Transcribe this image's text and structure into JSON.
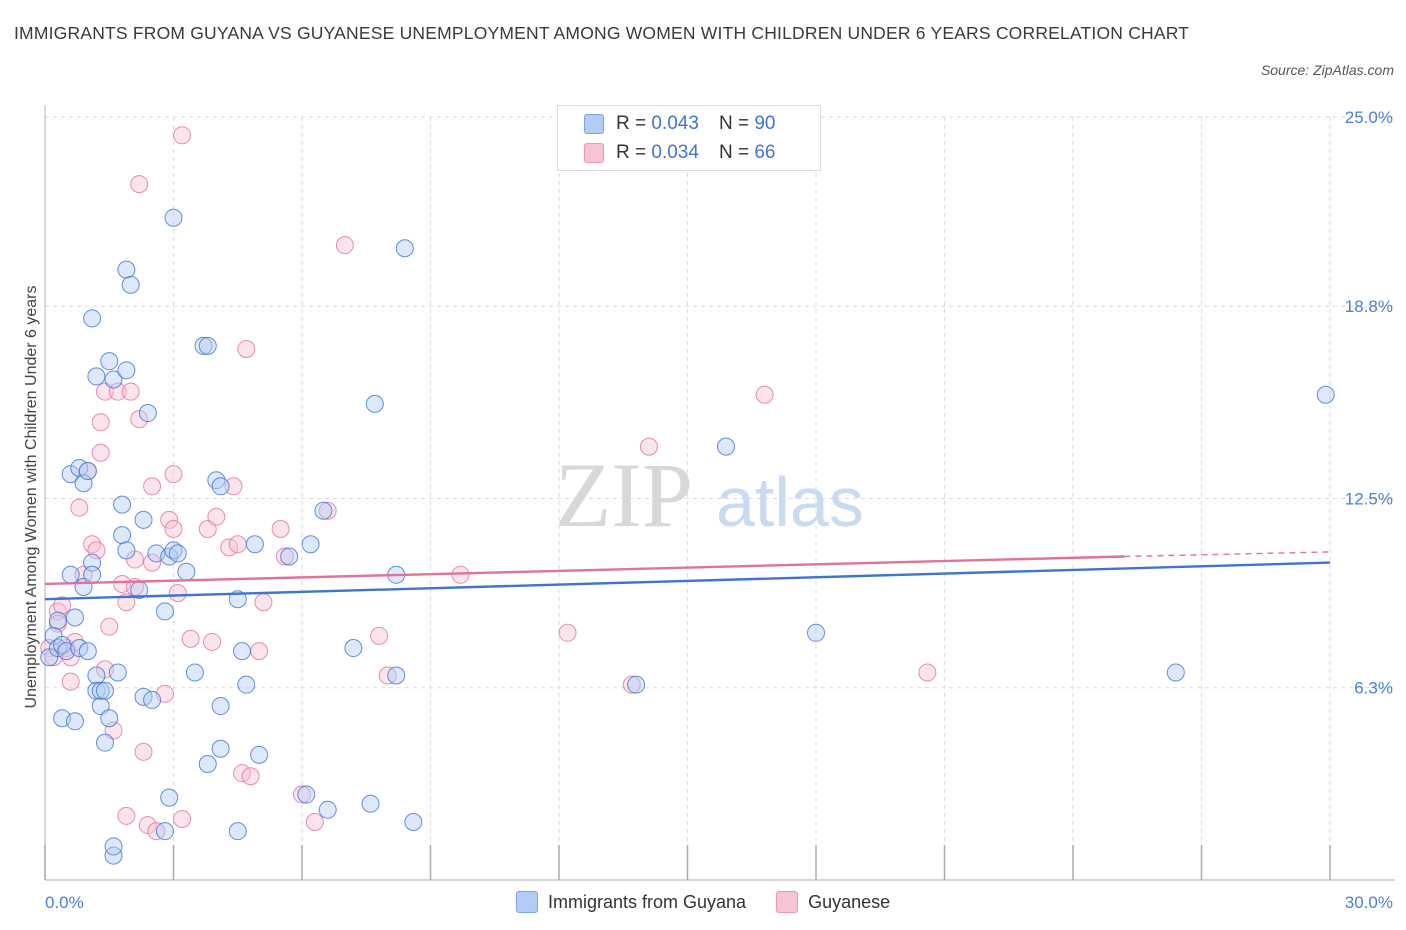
{
  "title": "IMMIGRANTS FROM GUYANA VS GUYANESE UNEMPLOYMENT AMONG WOMEN WITH CHILDREN UNDER 6 YEARS CORRELATION CHART",
  "source": "Source: ZipAtlas.com",
  "watermark": {
    "zip": "ZIP",
    "atlas": "atlas"
  },
  "colors": {
    "blue": "#3f74d0",
    "blue_fill": "#b3ccf5",
    "pink": "#e0729c",
    "pink_fill": "#f8c3d5",
    "grid": "#d9d9d9",
    "tick_text": "#4a7fd4"
  },
  "legend": {
    "rows": [
      {
        "r_label": "R =",
        "r_value": "0.043",
        "n_label": "N =",
        "n_value": "90"
      },
      {
        "r_label": "R =",
        "r_value": "0.034",
        "n_label": "N =",
        "n_value": "66"
      }
    ]
  },
  "bottom_legend": [
    "Immigrants from Guyana",
    "Guyanese"
  ],
  "chart_data": {
    "type": "scatter",
    "ylabel": "Unemployment Among Women with Children Under 6 years",
    "xlim": [
      0,
      30
    ],
    "ylim": [
      0,
      25.0
    ],
    "x_tick_labels": [
      {
        "value": 0,
        "label": "0.0%"
      },
      {
        "value": 30,
        "label": "30.0%"
      }
    ],
    "y_tick_labels": [
      {
        "value": 6.3,
        "label": "6.3%"
      },
      {
        "value": 12.5,
        "label": "12.5%"
      },
      {
        "value": 18.8,
        "label": "18.8%"
      },
      {
        "value": 25.0,
        "label": "25.0%"
      }
    ],
    "grid": true,
    "legend_position": "top-center",
    "series": [
      {
        "name": "Immigrants from Guyana",
        "color": "#3f74d0",
        "trend": {
          "x": [
            0,
            30
          ],
          "y": [
            9.2,
            10.4
          ]
        },
        "points": [
          [
            0.1,
            7.3
          ],
          [
            0.2,
            8.0
          ],
          [
            0.3,
            7.6
          ],
          [
            0.3,
            8.5
          ],
          [
            0.4,
            7.7
          ],
          [
            0.4,
            5.3
          ],
          [
            0.5,
            7.5
          ],
          [
            0.6,
            10.0
          ],
          [
            0.6,
            13.3
          ],
          [
            0.7,
            8.6
          ],
          [
            0.7,
            5.2
          ],
          [
            0.8,
            13.5
          ],
          [
            0.8,
            7.6
          ],
          [
            0.9,
            9.6
          ],
          [
            0.9,
            13.0
          ],
          [
            1.0,
            13.4
          ],
          [
            1.0,
            7.5
          ],
          [
            1.1,
            18.4
          ],
          [
            1.1,
            10.4
          ],
          [
            1.1,
            10.0
          ],
          [
            1.2,
            6.7
          ],
          [
            1.2,
            6.2
          ],
          [
            1.2,
            16.5
          ],
          [
            1.3,
            5.7
          ],
          [
            1.3,
            6.2
          ],
          [
            1.4,
            4.5
          ],
          [
            1.4,
            6.2
          ],
          [
            1.5,
            17.0
          ],
          [
            1.5,
            5.3
          ],
          [
            1.6,
            16.4
          ],
          [
            1.6,
            0.8
          ],
          [
            1.6,
            1.1
          ],
          [
            1.7,
            6.8
          ],
          [
            1.8,
            12.3
          ],
          [
            1.8,
            11.3
          ],
          [
            1.9,
            20.0
          ],
          [
            1.9,
            10.8
          ],
          [
            1.9,
            16.7
          ],
          [
            2.0,
            19.5
          ],
          [
            2.2,
            9.5
          ],
          [
            2.3,
            11.8
          ],
          [
            2.3,
            6.0
          ],
          [
            2.4,
            15.3
          ],
          [
            2.5,
            5.9
          ],
          [
            2.6,
            10.7
          ],
          [
            2.8,
            8.8
          ],
          [
            2.9,
            10.6
          ],
          [
            2.9,
            2.7
          ],
          [
            2.8,
            1.6
          ],
          [
            3.0,
            10.8
          ],
          [
            3.0,
            21.7
          ],
          [
            3.1,
            10.7
          ],
          [
            3.3,
            10.1
          ],
          [
            3.5,
            6.8
          ],
          [
            3.7,
            17.5
          ],
          [
            3.8,
            17.5
          ],
          [
            3.8,
            3.8
          ],
          [
            4.0,
            13.1
          ],
          [
            4.1,
            12.9
          ],
          [
            4.1,
            5.7
          ],
          [
            4.1,
            4.3
          ],
          [
            4.5,
            9.2
          ],
          [
            4.5,
            1.6
          ],
          [
            4.6,
            7.5
          ],
          [
            4.7,
            6.4
          ],
          [
            4.9,
            11.0
          ],
          [
            5.0,
            4.1
          ],
          [
            5.7,
            10.6
          ],
          [
            6.1,
            2.8
          ],
          [
            6.2,
            11.0
          ],
          [
            6.5,
            12.1
          ],
          [
            6.6,
            2.3
          ],
          [
            7.2,
            7.6
          ],
          [
            7.6,
            2.5
          ],
          [
            7.7,
            15.6
          ],
          [
            8.2,
            10.0
          ],
          [
            8.2,
            6.7
          ],
          [
            8.4,
            20.7
          ],
          [
            8.6,
            1.9
          ],
          [
            13.8,
            6.4
          ],
          [
            15.9,
            14.2
          ],
          [
            18.0,
            8.1
          ],
          [
            26.4,
            6.8
          ],
          [
            29.9,
            15.9
          ]
        ]
      },
      {
        "name": "Guyanese",
        "color": "#e0729c",
        "trend": {
          "x": [
            0,
            25.2
          ],
          "y": [
            9.7,
            10.6
          ],
          "dashed_to": {
            "x": 30,
            "y": 10.75
          }
        },
        "points": [
          [
            0.1,
            7.6
          ],
          [
            0.2,
            7.3
          ],
          [
            0.3,
            8.8
          ],
          [
            0.3,
            8.4
          ],
          [
            0.4,
            9.0
          ],
          [
            0.5,
            7.6
          ],
          [
            0.6,
            7.3
          ],
          [
            0.6,
            6.5
          ],
          [
            0.7,
            7.8
          ],
          [
            0.8,
            12.2
          ],
          [
            0.9,
            10.0
          ],
          [
            1.0,
            13.4
          ],
          [
            1.1,
            11.0
          ],
          [
            1.2,
            10.8
          ],
          [
            1.3,
            15.0
          ],
          [
            1.3,
            14.0
          ],
          [
            1.4,
            16.0
          ],
          [
            1.4,
            6.9
          ],
          [
            1.5,
            8.3
          ],
          [
            1.6,
            4.9
          ],
          [
            1.7,
            16.0
          ],
          [
            1.8,
            9.7
          ],
          [
            1.9,
            2.1
          ],
          [
            1.9,
            9.1
          ],
          [
            2.0,
            16.0
          ],
          [
            2.1,
            10.5
          ],
          [
            2.1,
            9.6
          ],
          [
            2.2,
            15.1
          ],
          [
            2.2,
            22.8
          ],
          [
            2.3,
            4.2
          ],
          [
            2.4,
            1.8
          ],
          [
            2.5,
            10.4
          ],
          [
            2.5,
            12.9
          ],
          [
            2.6,
            1.6
          ],
          [
            2.8,
            6.1
          ],
          [
            2.9,
            11.8
          ],
          [
            3.0,
            11.5
          ],
          [
            3.0,
            13.3
          ],
          [
            3.1,
            9.4
          ],
          [
            3.2,
            2.0
          ],
          [
            3.2,
            24.4
          ],
          [
            3.4,
            7.9
          ],
          [
            3.8,
            11.5
          ],
          [
            3.9,
            7.8
          ],
          [
            4.0,
            11.9
          ],
          [
            4.3,
            10.9
          ],
          [
            4.4,
            12.9
          ],
          [
            4.5,
            11.0
          ],
          [
            4.6,
            3.5
          ],
          [
            4.7,
            17.4
          ],
          [
            4.8,
            3.4
          ],
          [
            5.0,
            7.5
          ],
          [
            5.1,
            9.1
          ],
          [
            5.5,
            11.5
          ],
          [
            5.6,
            10.6
          ],
          [
            6.0,
            2.8
          ],
          [
            6.3,
            1.9
          ],
          [
            6.6,
            12.1
          ],
          [
            7.0,
            20.8
          ],
          [
            7.8,
            8.0
          ],
          [
            8.0,
            6.7
          ],
          [
            9.7,
            10.0
          ],
          [
            12.2,
            8.1
          ],
          [
            13.7,
            6.4
          ],
          [
            14.1,
            14.2
          ],
          [
            16.8,
            15.9
          ],
          [
            20.6,
            6.8
          ]
        ]
      }
    ]
  }
}
